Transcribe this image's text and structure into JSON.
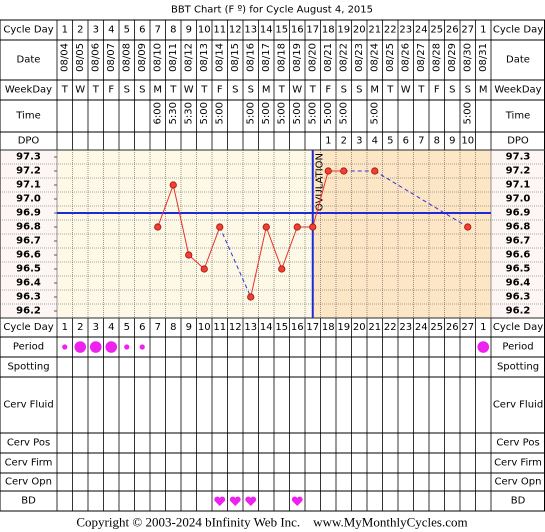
{
  "title": "BBT Chart (F º) for Cycle August 4, 2015",
  "labels": {
    "cycle_day": "Cycle Day",
    "date": "Date",
    "weekday": "WeekDay",
    "time": "Time",
    "dpo": "DPO",
    "period": "Period",
    "spotting": "Spotting",
    "cerv_fluid": "Cerv Fluid",
    "cerv_pos": "Cerv Pos",
    "cerv_firm": "Cerv Firm",
    "cerv_opn": "Cerv Opn",
    "bd": "BD"
  },
  "cycle_days": [
    "1",
    "2",
    "3",
    "4",
    "5",
    "6",
    "7",
    "8",
    "9",
    "10",
    "11",
    "12",
    "13",
    "14",
    "15",
    "16",
    "17",
    "18",
    "19",
    "20",
    "21",
    "22",
    "23",
    "24",
    "25",
    "26",
    "27",
    "1"
  ],
  "dates": [
    "08/04",
    "08/05",
    "08/06",
    "08/07",
    "08/08",
    "08/09",
    "08/10",
    "08/11",
    "08/12",
    "08/13",
    "08/14",
    "08/15",
    "08/16",
    "08/17",
    "08/18",
    "08/19",
    "08/20",
    "08/21",
    "08/22",
    "08/23",
    "08/24",
    "08/25",
    "08/26",
    "08/27",
    "08/28",
    "08/29",
    "08/30",
    "08/31"
  ],
  "weekdays": [
    "T",
    "W",
    "T",
    "F",
    "S",
    "S",
    "M",
    "T",
    "W",
    "T",
    "F",
    "S",
    "S",
    "M",
    "T",
    "W",
    "T",
    "F",
    "S",
    "S",
    "M",
    "T",
    "W",
    "T",
    "F",
    "S",
    "S",
    "M"
  ],
  "times": [
    null,
    null,
    null,
    null,
    null,
    null,
    "6:00",
    "5:30",
    "5:30",
    "5:00",
    "5:00",
    null,
    "5:00",
    "5:00",
    "5:00",
    "5:00",
    "5:00",
    "5:00",
    "5:00",
    null,
    "5:00",
    null,
    null,
    null,
    null,
    null,
    "5:00",
    null
  ],
  "dpo": [
    null,
    null,
    null,
    null,
    null,
    null,
    null,
    null,
    null,
    null,
    null,
    null,
    null,
    null,
    null,
    null,
    null,
    "1",
    "2",
    "3",
    "4",
    "5",
    "6",
    "7",
    "8",
    "9",
    "10",
    null
  ],
  "chart_data": {
    "type": "line",
    "color": "#e8312a",
    "gap_color": "#3434d8",
    "line_color": "#1d2bd6",
    "values": [
      null,
      null,
      null,
      null,
      null,
      null,
      96.8,
      97.1,
      96.6,
      96.5,
      96.8,
      null,
      96.3,
      96.8,
      96.5,
      96.8,
      96.8,
      97.2,
      97.2,
      null,
      97.2,
      null,
      null,
      null,
      null,
      null,
      96.8,
      null
    ],
    "ylim": [
      96.15,
      97.35
    ],
    "yticks": [
      97.3,
      97.2,
      97.1,
      {
        "value": 97,
        "label": "97.0"
      },
      96.9,
      96.8,
      96.7,
      96.6,
      96.5,
      96.4,
      96.3,
      96.2
    ],
    "coverline": 96.9,
    "ovulation_day": 17,
    "ovulation_label": "OVULATION"
  },
  "period": [
    1,
    2,
    2,
    2,
    1,
    1,
    0,
    0,
    0,
    0,
    0,
    0,
    0,
    0,
    0,
    0,
    0,
    0,
    0,
    0,
    0,
    0,
    0,
    0,
    0,
    0,
    0,
    2
  ],
  "bd": [
    0,
    0,
    0,
    0,
    0,
    0,
    0,
    0,
    0,
    0,
    1,
    1,
    1,
    0,
    0,
    1,
    0,
    0,
    0,
    0,
    0,
    0,
    0,
    0,
    0,
    0,
    0,
    0
  ],
  "footer": "Copyright © 2003-2024 bInfinity Web Inc.    www.MyMonthlyCycles.com"
}
